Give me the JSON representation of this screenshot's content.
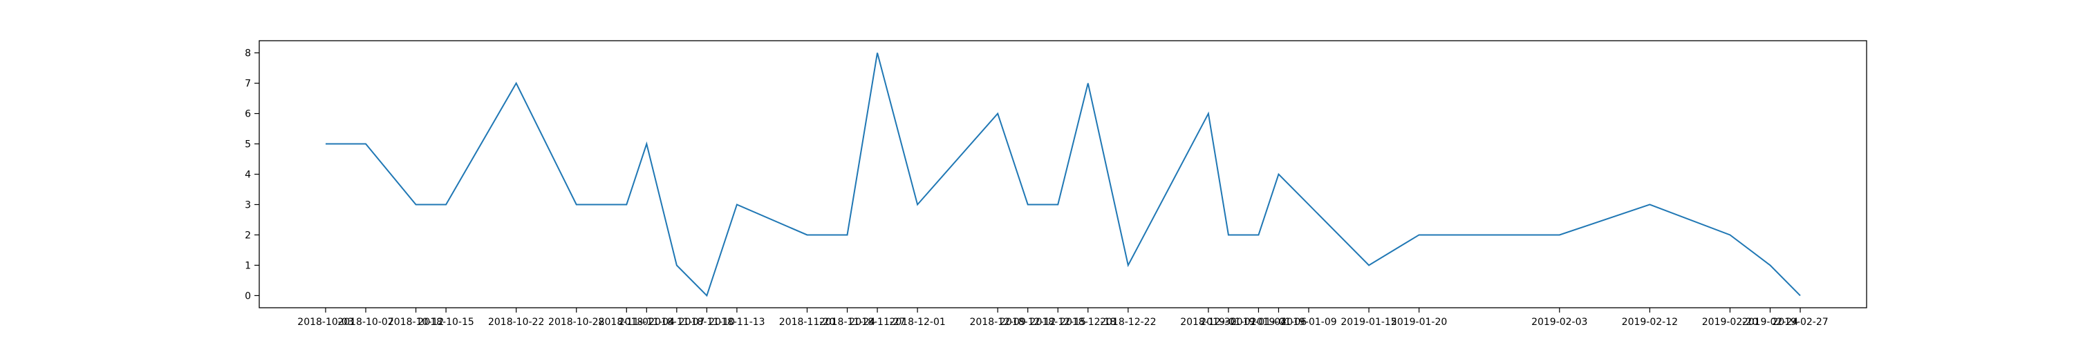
{
  "chart_data": {
    "type": "line",
    "title": "",
    "xlabel": "",
    "ylabel": "",
    "grid": false,
    "legend": false,
    "x": [
      "2018-10-03",
      "2018-10-07",
      "2018-10-12",
      "2018-10-15",
      "2018-10-22",
      "2018-10-28",
      "2018-11-02",
      "2018-11-04",
      "2018-11-07",
      "2018-11-10",
      "2018-11-13",
      "2018-11-20",
      "2018-11-24",
      "2018-11-27",
      "2018-12-01",
      "2018-12-09",
      "2018-12-12",
      "2018-12-15",
      "2018-12-18",
      "2018-12-22",
      "2018-12-30",
      "2019-01-01",
      "2019-01-04",
      "2019-01-06",
      "2019-01-09",
      "2019-01-15",
      "2019-01-20",
      "2019-02-03",
      "2019-02-12",
      "2019-02-20",
      "2019-02-24",
      "2019-02-27"
    ],
    "series": [
      {
        "color": "#1f77b4",
        "values": [
          5,
          5,
          3,
          3,
          7,
          3,
          3,
          5,
          1,
          0,
          3,
          2,
          2,
          8,
          3,
          6,
          3,
          3,
          7,
          1,
          6,
          2,
          2,
          4,
          3,
          1,
          2,
          2,
          3,
          2,
          1,
          0
        ]
      }
    ],
    "ylim": [
      -0.4,
      8.4
    ],
    "yticks": [
      0,
      1,
      2,
      3,
      4,
      5,
      6,
      7,
      8
    ]
  }
}
